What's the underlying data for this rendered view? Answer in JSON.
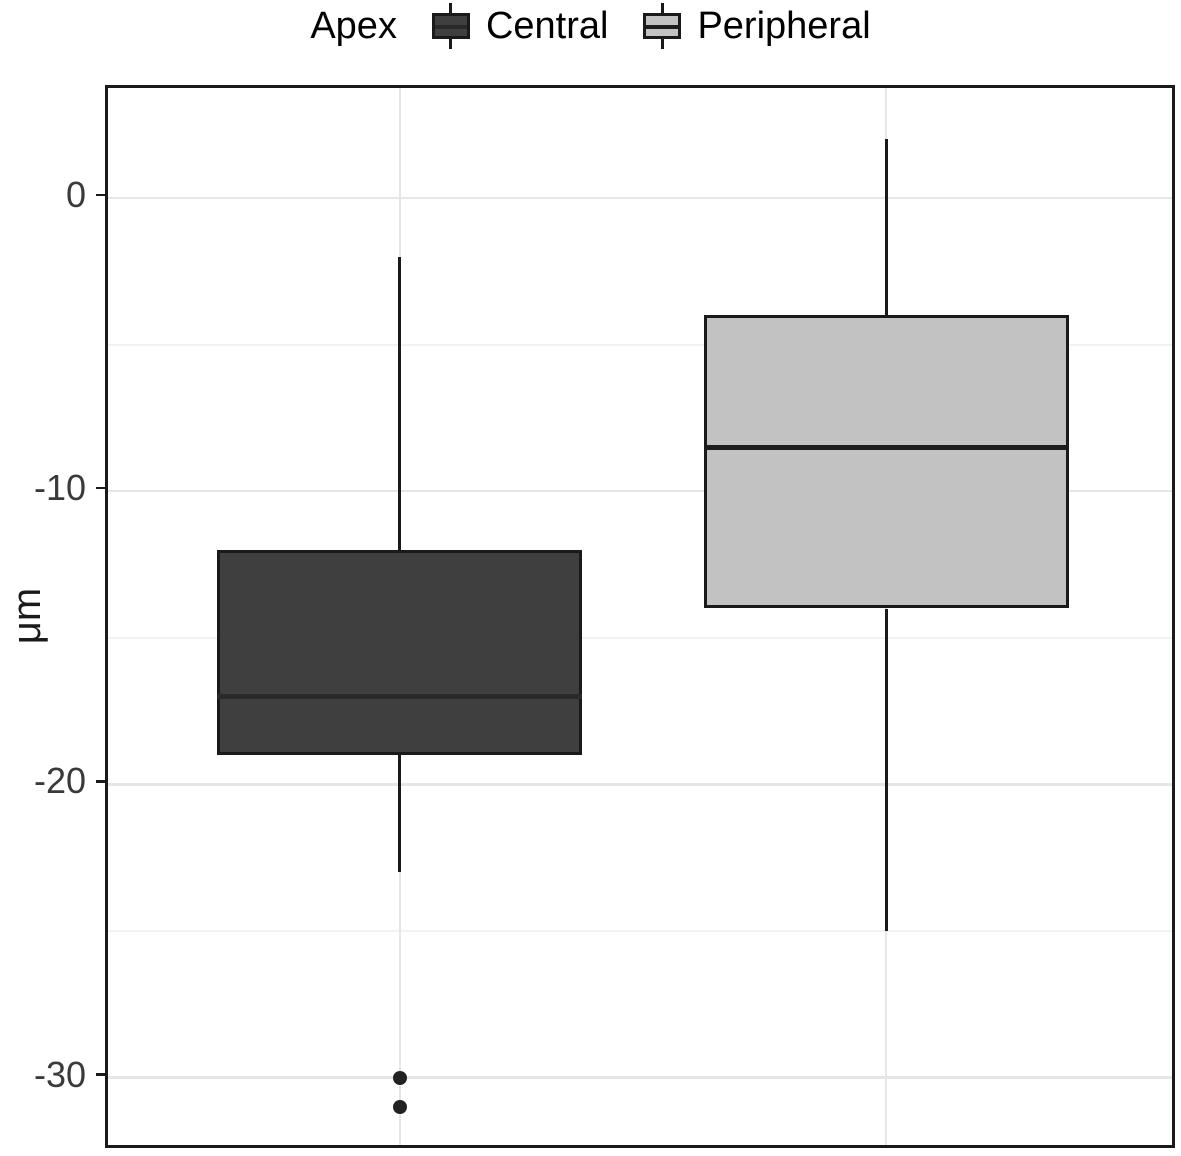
{
  "legend": {
    "title": "Apex",
    "items": [
      {
        "label": "Central"
      },
      {
        "label": "Peripheral"
      }
    ]
  },
  "chart_data": {
    "type": "boxplot",
    "ylabel": "μm",
    "ylim": [
      -32.5,
      3.75
    ],
    "y_major_ticks": [
      0,
      -10,
      -20,
      -30
    ],
    "y_minor_ticks": [
      -5,
      -15,
      -25
    ],
    "grid": true,
    "legend_position": "top",
    "categories": [
      "Central",
      "Peripheral"
    ],
    "series": [
      {
        "name": "Central",
        "fill": "#3F3F3F",
        "median_color": "#2A2A2A",
        "whisker_low": -23,
        "q1": -19,
        "median": -17,
        "q3": -12,
        "whisker_high": -2,
        "outliers": [
          -30,
          -31
        ]
      },
      {
        "name": "Peripheral",
        "fill": "#C2C2C2",
        "median_color": "#1C1C1C",
        "whisker_low": -25,
        "q1": -14,
        "median": -8.5,
        "q3": -4,
        "whisker_high": 2,
        "outliers": []
      }
    ],
    "colors": {
      "axis_text": "#3A3A3A",
      "panel_border": "#1A1A1A",
      "box_stroke": "#1A1A1A",
      "grid_major": "#E6E6E6",
      "grid_minor": "#F2F2F2",
      "outlier": "#222222"
    }
  }
}
